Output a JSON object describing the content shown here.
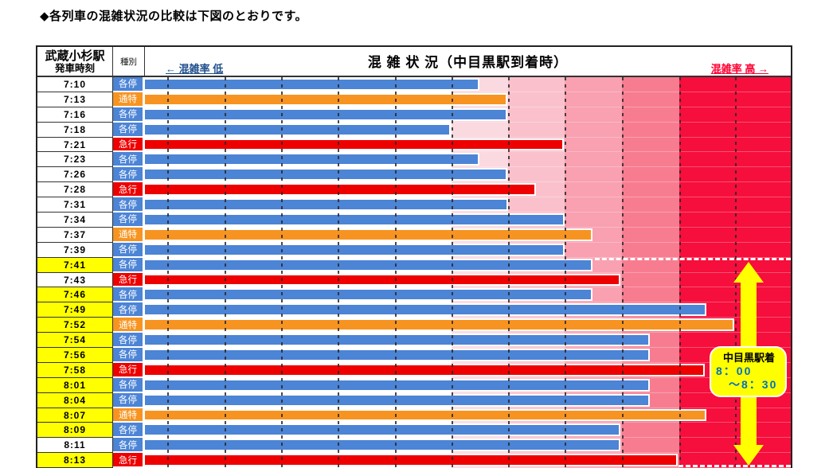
{
  "page": {
    "title": "◆各列車の混雑状況の比較は下図のとおりです。"
  },
  "header": {
    "station_line1": "武蔵小杉駅",
    "station_line2": "発車時刻",
    "type_col_label": "種別",
    "chart_title": "混 雑 状 況（中目黒駅到着時）",
    "axis_low_label": "← 混雑率 低",
    "axis_high_label": "混雑率 高 →"
  },
  "annotation_note": {
    "line1": "中目黒駅着",
    "line2": "8：00",
    "line3": "～8：30"
  },
  "colors": {
    "local_blue": "#4C84D6",
    "commuter_express_orange": "#F79421",
    "express_red": "#EE0000",
    "highlight_yellow": "#FFFF00",
    "axis_low_text": "#1F4E8C",
    "axis_high_text": "#FF0033",
    "note_time_text": "#0070C0",
    "table_border": "#222222"
  },
  "chart_data": {
    "type": "bar",
    "orientation": "horizontal",
    "title": "混 雑 状 況（中目黒駅到着時）",
    "xlabel_low": "← 混雑率 低",
    "xlabel_high": "混雑率 高 →",
    "value_unit": "relative congestion, percent of axis width (no numeric axis labels shown)",
    "xlim_pct": [
      0,
      100
    ],
    "grid": true,
    "gridlines_pct": [
      3.4,
      12.3,
      21.1,
      29.8,
      38.7,
      47.5,
      56.2,
      65.0,
      73.9,
      82.7,
      91.4
    ],
    "background_bands": [
      {
        "from_pct": 0,
        "to_pct": 47.5,
        "color": "#FFFFFF"
      },
      {
        "from_pct": 47.5,
        "to_pct": 56.2,
        "color": "#FBD9E1"
      },
      {
        "from_pct": 56.2,
        "to_pct": 65.0,
        "color": "#FAC1CC"
      },
      {
        "from_pct": 65.0,
        "to_pct": 73.9,
        "color": "#F9A0B1"
      },
      {
        "from_pct": 73.9,
        "to_pct": 82.7,
        "color": "#F87C90"
      },
      {
        "from_pct": 82.7,
        "to_pct": 100,
        "color": "#F60E3C"
      }
    ],
    "train_types": [
      {
        "code": "各停",
        "color_key": "local_blue"
      },
      {
        "code": "通特",
        "color_key": "commuter_express_orange"
      },
      {
        "code": "急行",
        "color_key": "express_red"
      }
    ],
    "rows": [
      {
        "time": "7:10",
        "type": "各停",
        "value_pct": 51.8,
        "highlighted": false
      },
      {
        "time": "7:13",
        "type": "通特",
        "value_pct": 56.1,
        "highlighted": false
      },
      {
        "time": "7:16",
        "type": "各停",
        "value_pct": 56.1,
        "highlighted": false
      },
      {
        "time": "7:18",
        "type": "各停",
        "value_pct": 47.4,
        "highlighted": false
      },
      {
        "time": "7:21",
        "type": "急行",
        "value_pct": 64.9,
        "highlighted": false
      },
      {
        "time": "7:23",
        "type": "各停",
        "value_pct": 51.8,
        "highlighted": false
      },
      {
        "time": "7:26",
        "type": "各停",
        "value_pct": 56.1,
        "highlighted": false
      },
      {
        "time": "7:28",
        "type": "急行",
        "value_pct": 60.6,
        "highlighted": false
      },
      {
        "time": "7:31",
        "type": "各停",
        "value_pct": 56.2,
        "highlighted": false
      },
      {
        "time": "7:34",
        "type": "各停",
        "value_pct": 65.0,
        "highlighted": false
      },
      {
        "time": "7:37",
        "type": "通特",
        "value_pct": 69.3,
        "highlighted": false
      },
      {
        "time": "7:39",
        "type": "各停",
        "value_pct": 65.0,
        "highlighted": false
      },
      {
        "time": "7:41",
        "type": "各停",
        "value_pct": 69.3,
        "highlighted": true
      },
      {
        "time": "7:43",
        "type": "急行",
        "value_pct": 73.6,
        "highlighted": false
      },
      {
        "time": "7:46",
        "type": "各停",
        "value_pct": 69.3,
        "highlighted": true
      },
      {
        "time": "7:49",
        "type": "各停",
        "value_pct": 86.9,
        "highlighted": true
      },
      {
        "time": "7:52",
        "type": "通特",
        "value_pct": 91.2,
        "highlighted": true
      },
      {
        "time": "7:54",
        "type": "各停",
        "value_pct": 78.2,
        "highlighted": true
      },
      {
        "time": "7:56",
        "type": "各停",
        "value_pct": 78.2,
        "highlighted": true
      },
      {
        "time": "7:58",
        "type": "急行",
        "value_pct": 86.7,
        "highlighted": true
      },
      {
        "time": "8:01",
        "type": "各停",
        "value_pct": 78.2,
        "highlighted": true
      },
      {
        "time": "8:04",
        "type": "各停",
        "value_pct": 78.2,
        "highlighted": true
      },
      {
        "time": "8:07",
        "type": "通特",
        "value_pct": 86.9,
        "highlighted": true
      },
      {
        "time": "8:09",
        "type": "各停",
        "value_pct": 73.6,
        "highlighted": true
      },
      {
        "time": "8:11",
        "type": "各停",
        "value_pct": 73.6,
        "highlighted": false
      },
      {
        "time": "8:13",
        "type": "急行",
        "value_pct": 82.5,
        "highlighted": true
      }
    ],
    "annotations": [
      {
        "kind": "dashed-line-top",
        "y_row_boundary_index": 12,
        "x_from_pct": 69.7,
        "x_to_pct": 100
      },
      {
        "kind": "dashed-line-bottom",
        "x_from_pct": 82.6,
        "x_to_pct": 100
      },
      {
        "kind": "double-arrow-vertical",
        "x_center_pct": 93.5
      },
      {
        "kind": "note-box",
        "text": "中目黒駅着 8：00 ～8：30"
      }
    ]
  }
}
